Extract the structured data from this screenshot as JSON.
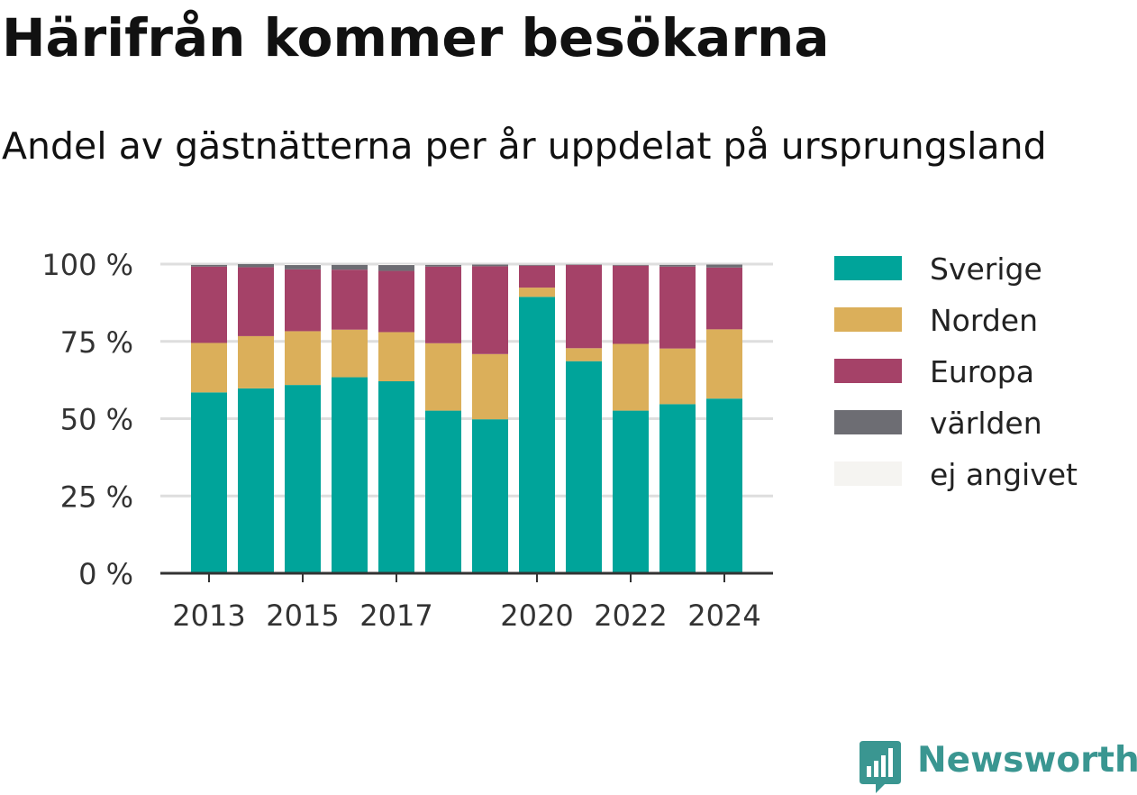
{
  "title": "Härifrån kommer besökarna",
  "subtitle": "Andel av gästnätterna per år uppdelat på ursprungsland",
  "brand": "Newsworthy",
  "chart_data": {
    "type": "bar",
    "stacked": true,
    "categories": [
      "2013",
      "2014",
      "2015",
      "2016",
      "2017",
      "2018",
      "2019",
      "2020",
      "2021",
      "2022",
      "2023",
      "2024"
    ],
    "x_tick_labels": [
      "2013",
      "2015",
      "2017",
      "2020",
      "2022",
      "2024"
    ],
    "y_tick_labels": [
      "0 %",
      "25 %",
      "50 %",
      "75 %",
      "100 %"
    ],
    "y_ticks": [
      0,
      25,
      50,
      75,
      100
    ],
    "ylim": [
      0,
      100
    ],
    "grid": true,
    "legend_position": "right",
    "series": [
      {
        "name": "Sverige",
        "color": "#00a49a",
        "values": [
          58.5,
          59.8,
          60.9,
          63.4,
          62.1,
          52.6,
          49.8,
          89.4,
          68.6,
          52.6,
          54.7,
          56.5
        ]
      },
      {
        "name": "Norden",
        "color": "#dbaf5a",
        "values": [
          16.0,
          16.9,
          17.4,
          15.4,
          15.9,
          21.8,
          21.1,
          3.0,
          4.2,
          21.6,
          18.0,
          22.4
        ]
      },
      {
        "name": "Europa",
        "color": "#a54268",
        "values": [
          24.7,
          22.3,
          20.0,
          19.4,
          19.8,
          24.8,
          28.4,
          7.1,
          26.9,
          25.3,
          26.5,
          20.0
        ]
      },
      {
        "name": "världen",
        "color": "#6d6d73",
        "values": [
          0.6,
          1.0,
          1.4,
          1.6,
          1.9,
          0.6,
          0.6,
          0.3,
          0.2,
          0.3,
          0.6,
          1.0
        ]
      },
      {
        "name": "ej angivet",
        "color": "#f5f4f1",
        "values": [
          0.2,
          0.0,
          0.3,
          0.2,
          0.3,
          0.2,
          0.1,
          0.2,
          0.1,
          0.2,
          0.2,
          0.1
        ]
      }
    ]
  }
}
